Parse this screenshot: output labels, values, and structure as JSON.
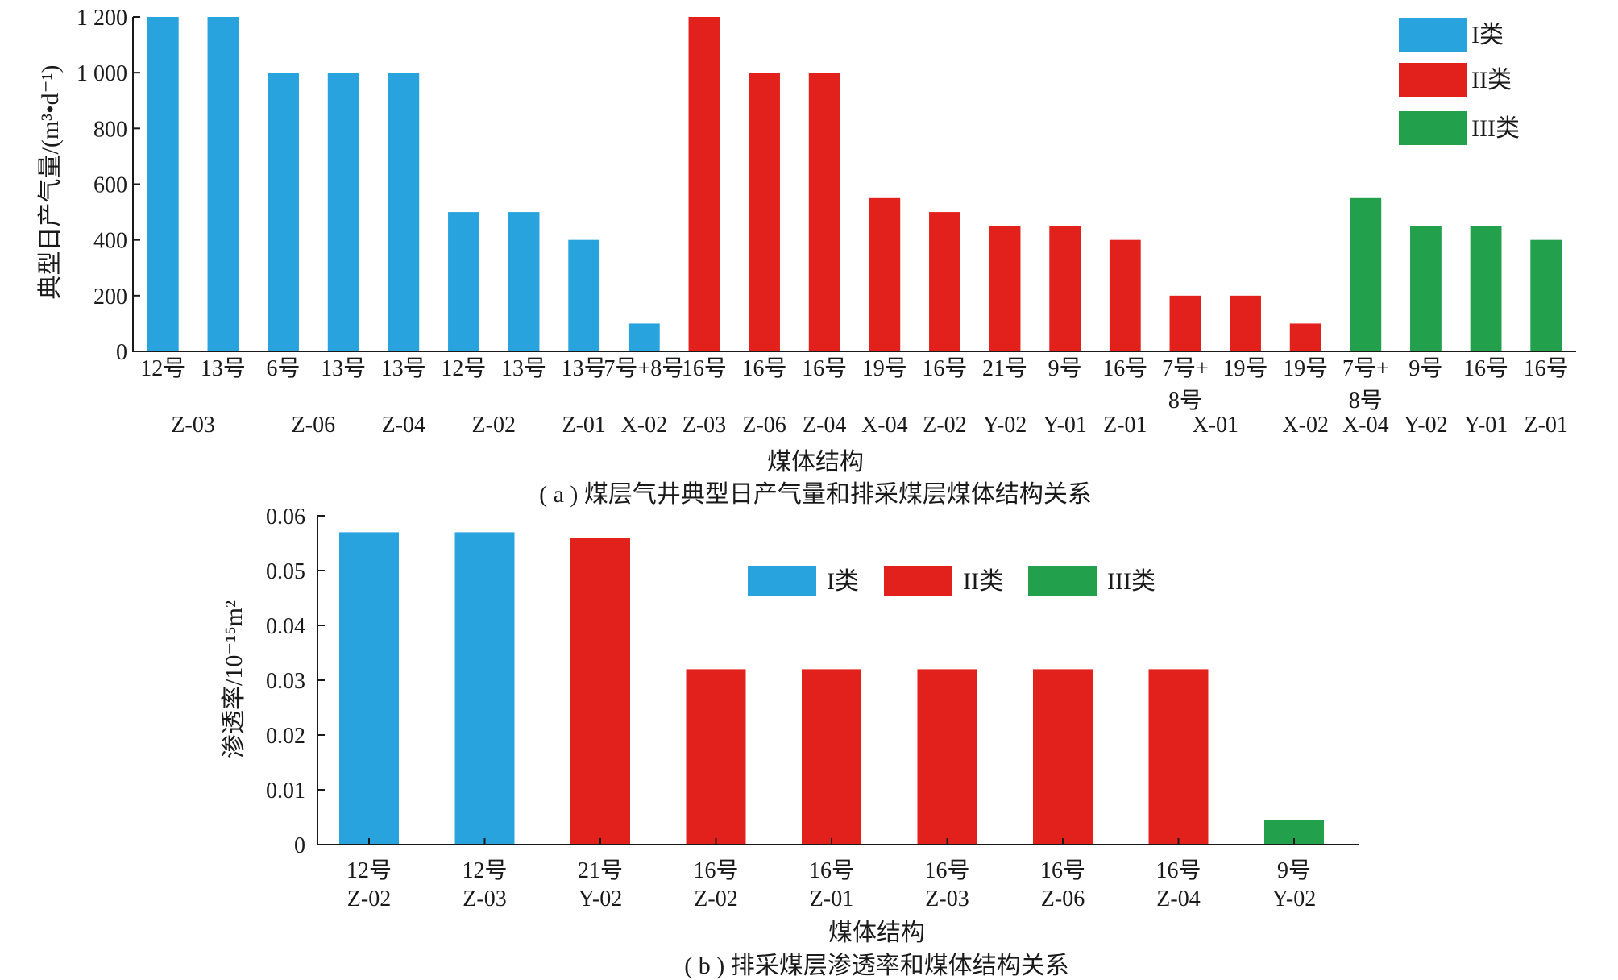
{
  "colors": {
    "I": "#29a3de",
    "II": "#e3211c",
    "III": "#22a04b"
  },
  "chart_data": [
    {
      "type": "bar",
      "caption": "( a ) 煤层气井典型日产气量和排采煤层煤体结构关系",
      "ylabel": "典型日产气量/(m³•d⁻¹)",
      "xlabel": "煤体结构",
      "ylim": [
        0,
        1200
      ],
      "yticks": [
        0,
        200,
        400,
        600,
        800,
        1000,
        1200
      ],
      "yticklabels": [
        "0",
        "200",
        "400",
        "600",
        "800",
        "1 000",
        "1 200"
      ],
      "legend": {
        "position": "top-right",
        "entries": [
          {
            "key": "I",
            "label": "I类"
          },
          {
            "key": "II",
            "label": "II类"
          },
          {
            "key": "III",
            "label": "III类"
          }
        ]
      },
      "bars": [
        {
          "value": 1200,
          "cls": "I"
        },
        {
          "value": 1200,
          "cls": "I"
        },
        {
          "value": 1000,
          "cls": "I"
        },
        {
          "value": 1000,
          "cls": "I"
        },
        {
          "value": 1000,
          "cls": "I"
        },
        {
          "value": 500,
          "cls": "I"
        },
        {
          "value": 500,
          "cls": "I"
        },
        {
          "value": 400,
          "cls": "I"
        },
        {
          "value": 100,
          "cls": "I"
        },
        {
          "value": 1200,
          "cls": "II"
        },
        {
          "value": 1000,
          "cls": "II"
        },
        {
          "value": 1000,
          "cls": "II"
        },
        {
          "value": 550,
          "cls": "II"
        },
        {
          "value": 500,
          "cls": "II"
        },
        {
          "value": 450,
          "cls": "II"
        },
        {
          "value": 450,
          "cls": "II"
        },
        {
          "value": 400,
          "cls": "II"
        },
        {
          "value": 200,
          "cls": "II"
        },
        {
          "value": 200,
          "cls": "II"
        },
        {
          "value": 100,
          "cls": "II"
        },
        {
          "value": 550,
          "cls": "III"
        },
        {
          "value": 450,
          "cls": "III"
        },
        {
          "value": 450,
          "cls": "III"
        },
        {
          "value": 400,
          "cls": "III"
        }
      ],
      "xlabels_row1": [
        {
          "text": "12号",
          "bar": 0
        },
        {
          "text": "13号",
          "bar": 1
        },
        {
          "text": "6号",
          "bar": 2
        },
        {
          "text": "13号",
          "bar": 3
        },
        {
          "text": "13号",
          "bar": 4
        },
        {
          "text": "12号",
          "bar": 5
        },
        {
          "text": "13号",
          "bar": 6
        },
        {
          "text": "13号",
          "bar": 7
        },
        {
          "text": "7号+8号",
          "bar": 8
        },
        {
          "text": "16号",
          "bar": 9
        },
        {
          "text": "16号",
          "bar": 10
        },
        {
          "text": "16号",
          "bar": 11
        },
        {
          "text": "19号",
          "bar": 12
        },
        {
          "text": "16号",
          "bar": 13
        },
        {
          "text": "21号",
          "bar": 14
        },
        {
          "text": "9号",
          "bar": 15
        },
        {
          "text": "16号",
          "bar": 16
        },
        {
          "text": "7号+",
          "bar": 17
        },
        {
          "text": "19号",
          "bar": 18
        },
        {
          "text": "19号",
          "bar": 19
        },
        {
          "text": "7号+",
          "bar": 20
        },
        {
          "text": "9号",
          "bar": 21
        },
        {
          "text": "16号",
          "bar": 22
        },
        {
          "text": "16号",
          "bar": 23
        }
      ],
      "xlabels_row1b": [
        {
          "text": "8号",
          "bar": 17
        },
        {
          "text": "8号",
          "bar": 20
        }
      ],
      "xlabels_row2": [
        {
          "text": "Z-03",
          "bar": 0.5
        },
        {
          "text": "Z-06",
          "bar": 2.5
        },
        {
          "text": "Z-04",
          "bar": 4
        },
        {
          "text": "Z-02",
          "bar": 5.5
        },
        {
          "text": "Z-01",
          "bar": 7
        },
        {
          "text": "X-02",
          "bar": 8
        },
        {
          "text": "Z-03",
          "bar": 9
        },
        {
          "text": "Z-06",
          "bar": 10
        },
        {
          "text": "Z-04",
          "bar": 11
        },
        {
          "text": "X-04",
          "bar": 12
        },
        {
          "text": "Z-02",
          "bar": 13
        },
        {
          "text": "Y-02",
          "bar": 14
        },
        {
          "text": "Y-01",
          "bar": 15
        },
        {
          "text": "Z-01",
          "bar": 16
        },
        {
          "text": "X-01",
          "bar": 17.5
        },
        {
          "text": "X-02",
          "bar": 19
        },
        {
          "text": "X-04",
          "bar": 20
        },
        {
          "text": "Y-02",
          "bar": 21
        },
        {
          "text": "Y-01",
          "bar": 22
        },
        {
          "text": "Z-01",
          "bar": 23
        }
      ]
    },
    {
      "type": "bar",
      "caption": "( b ) 排采煤层渗透率和煤体结构关系",
      "ylabel": "渗透率/10⁻¹⁵m²",
      "xlabel": "煤体结构",
      "ylim": [
        0,
        0.06
      ],
      "yticks": [
        0,
        0.01,
        0.02,
        0.03,
        0.04,
        0.05,
        0.06
      ],
      "yticklabels": [
        "0",
        "0.01",
        "0.02",
        "0.03",
        "0.04",
        "0.05",
        "0.06"
      ],
      "legend": {
        "position": "top-center",
        "entries": [
          {
            "key": "I",
            "label": "I类"
          },
          {
            "key": "II",
            "label": "II类"
          },
          {
            "key": "III",
            "label": "III类"
          }
        ]
      },
      "bars": [
        {
          "value": 0.057,
          "cls": "I",
          "seam": "12号",
          "struct": "Z-02"
        },
        {
          "value": 0.057,
          "cls": "I",
          "seam": "12号",
          "struct": "Z-03"
        },
        {
          "value": 0.056,
          "cls": "II",
          "seam": "21号",
          "struct": "Y-02"
        },
        {
          "value": 0.032,
          "cls": "II",
          "seam": "16号",
          "struct": "Z-02"
        },
        {
          "value": 0.032,
          "cls": "II",
          "seam": "16号",
          "struct": "Z-01"
        },
        {
          "value": 0.032,
          "cls": "II",
          "seam": "16号",
          "struct": "Z-03"
        },
        {
          "value": 0.032,
          "cls": "II",
          "seam": "16号",
          "struct": "Z-06"
        },
        {
          "value": 0.032,
          "cls": "II",
          "seam": "16号",
          "struct": "Z-04"
        },
        {
          "value": 0.0045,
          "cls": "III",
          "seam": "9号",
          "struct": "Y-02"
        }
      ]
    }
  ]
}
